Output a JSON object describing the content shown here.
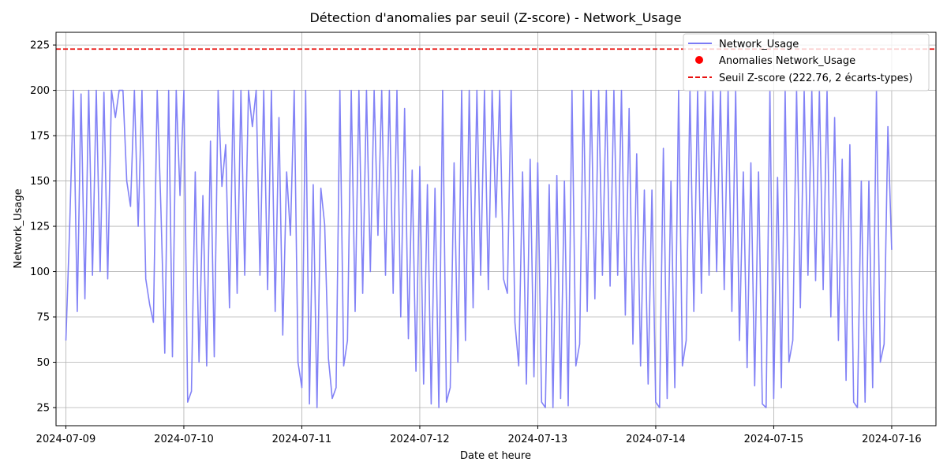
{
  "chart_data": {
    "type": "line",
    "title": "Détection d'anomalies par seuil (Z-score) - Network_Usage",
    "xlabel": "Date et heure",
    "ylabel": "Network_Usage",
    "x_range": [
      "2024-07-08T22:00",
      "2024-07-16T09:00"
    ],
    "ylim": [
      15,
      232
    ],
    "y_ticks": [
      25,
      50,
      75,
      100,
      125,
      150,
      175,
      200,
      225
    ],
    "x_ticks": [
      "2024-07-09",
      "2024-07-10",
      "2024-07-11",
      "2024-07-12",
      "2024-07-13",
      "2024-07-14",
      "2024-07-15",
      "2024-07-16"
    ],
    "grid": true,
    "legend_position": "top-right",
    "colors": {
      "series": "#7b7bf5",
      "anomalies": "#ff0000",
      "threshold": "#e8110f"
    },
    "series": [
      {
        "name": "Network_Usage",
        "x_start": "2024-07-09T00:00",
        "x_end": "2024-07-16T00:00",
        "values": [
          62,
          125,
          200,
          78,
          198,
          85,
          200,
          98,
          200,
          100,
          199,
          96,
          200,
          185,
          200,
          200,
          150,
          136,
          200,
          125,
          200,
          96,
          82,
          72,
          200,
          133,
          55,
          200,
          53,
          200,
          142,
          200,
          28,
          34,
          155,
          50,
          142,
          48,
          172,
          53,
          200,
          147,
          170,
          80,
          200,
          88,
          200,
          98,
          200,
          180,
          200,
          98,
          200,
          90,
          200,
          78,
          185,
          65,
          155,
          120,
          200,
          50,
          36,
          200,
          27,
          148,
          25,
          146,
          126,
          52,
          30,
          36,
          200,
          48,
          62,
          200,
          78,
          200,
          88,
          200,
          100,
          200,
          120,
          200,
          98,
          200,
          88,
          200,
          75,
          190,
          63,
          156,
          45,
          158,
          38,
          148,
          27,
          146,
          25,
          200,
          28,
          36,
          160,
          50,
          200,
          62,
          200,
          80,
          200,
          98,
          200,
          90,
          200,
          130,
          200,
          96,
          88,
          200,
          72,
          48,
          155,
          38,
          162,
          42,
          160,
          28,
          25,
          148,
          25,
          153,
          30,
          150,
          26,
          200,
          48,
          60,
          200,
          78,
          200,
          85,
          200,
          98,
          200,
          92,
          200,
          98,
          200,
          76,
          190,
          60,
          165,
          48,
          145,
          38,
          145,
          28,
          25,
          168,
          30,
          150,
          36,
          200,
          48,
          62,
          200,
          78,
          200,
          88,
          200,
          98,
          200,
          100,
          200,
          90,
          200,
          78,
          200,
          62,
          155,
          47,
          160,
          37,
          155,
          27,
          25,
          200,
          30,
          152,
          36,
          200,
          50,
          62,
          200,
          80,
          200,
          98,
          200,
          95,
          200,
          90,
          200,
          75,
          185,
          62,
          162,
          40,
          170,
          28,
          25,
          150,
          28,
          150,
          36,
          200,
          50,
          60,
          180,
          112
        ]
      }
    ],
    "anomalies": {
      "name": "Anomalies Network_Usage",
      "points": []
    },
    "threshold": {
      "name": "Seuil Z-score (222.76, 2 écarts-types)",
      "value": 222.76
    }
  }
}
